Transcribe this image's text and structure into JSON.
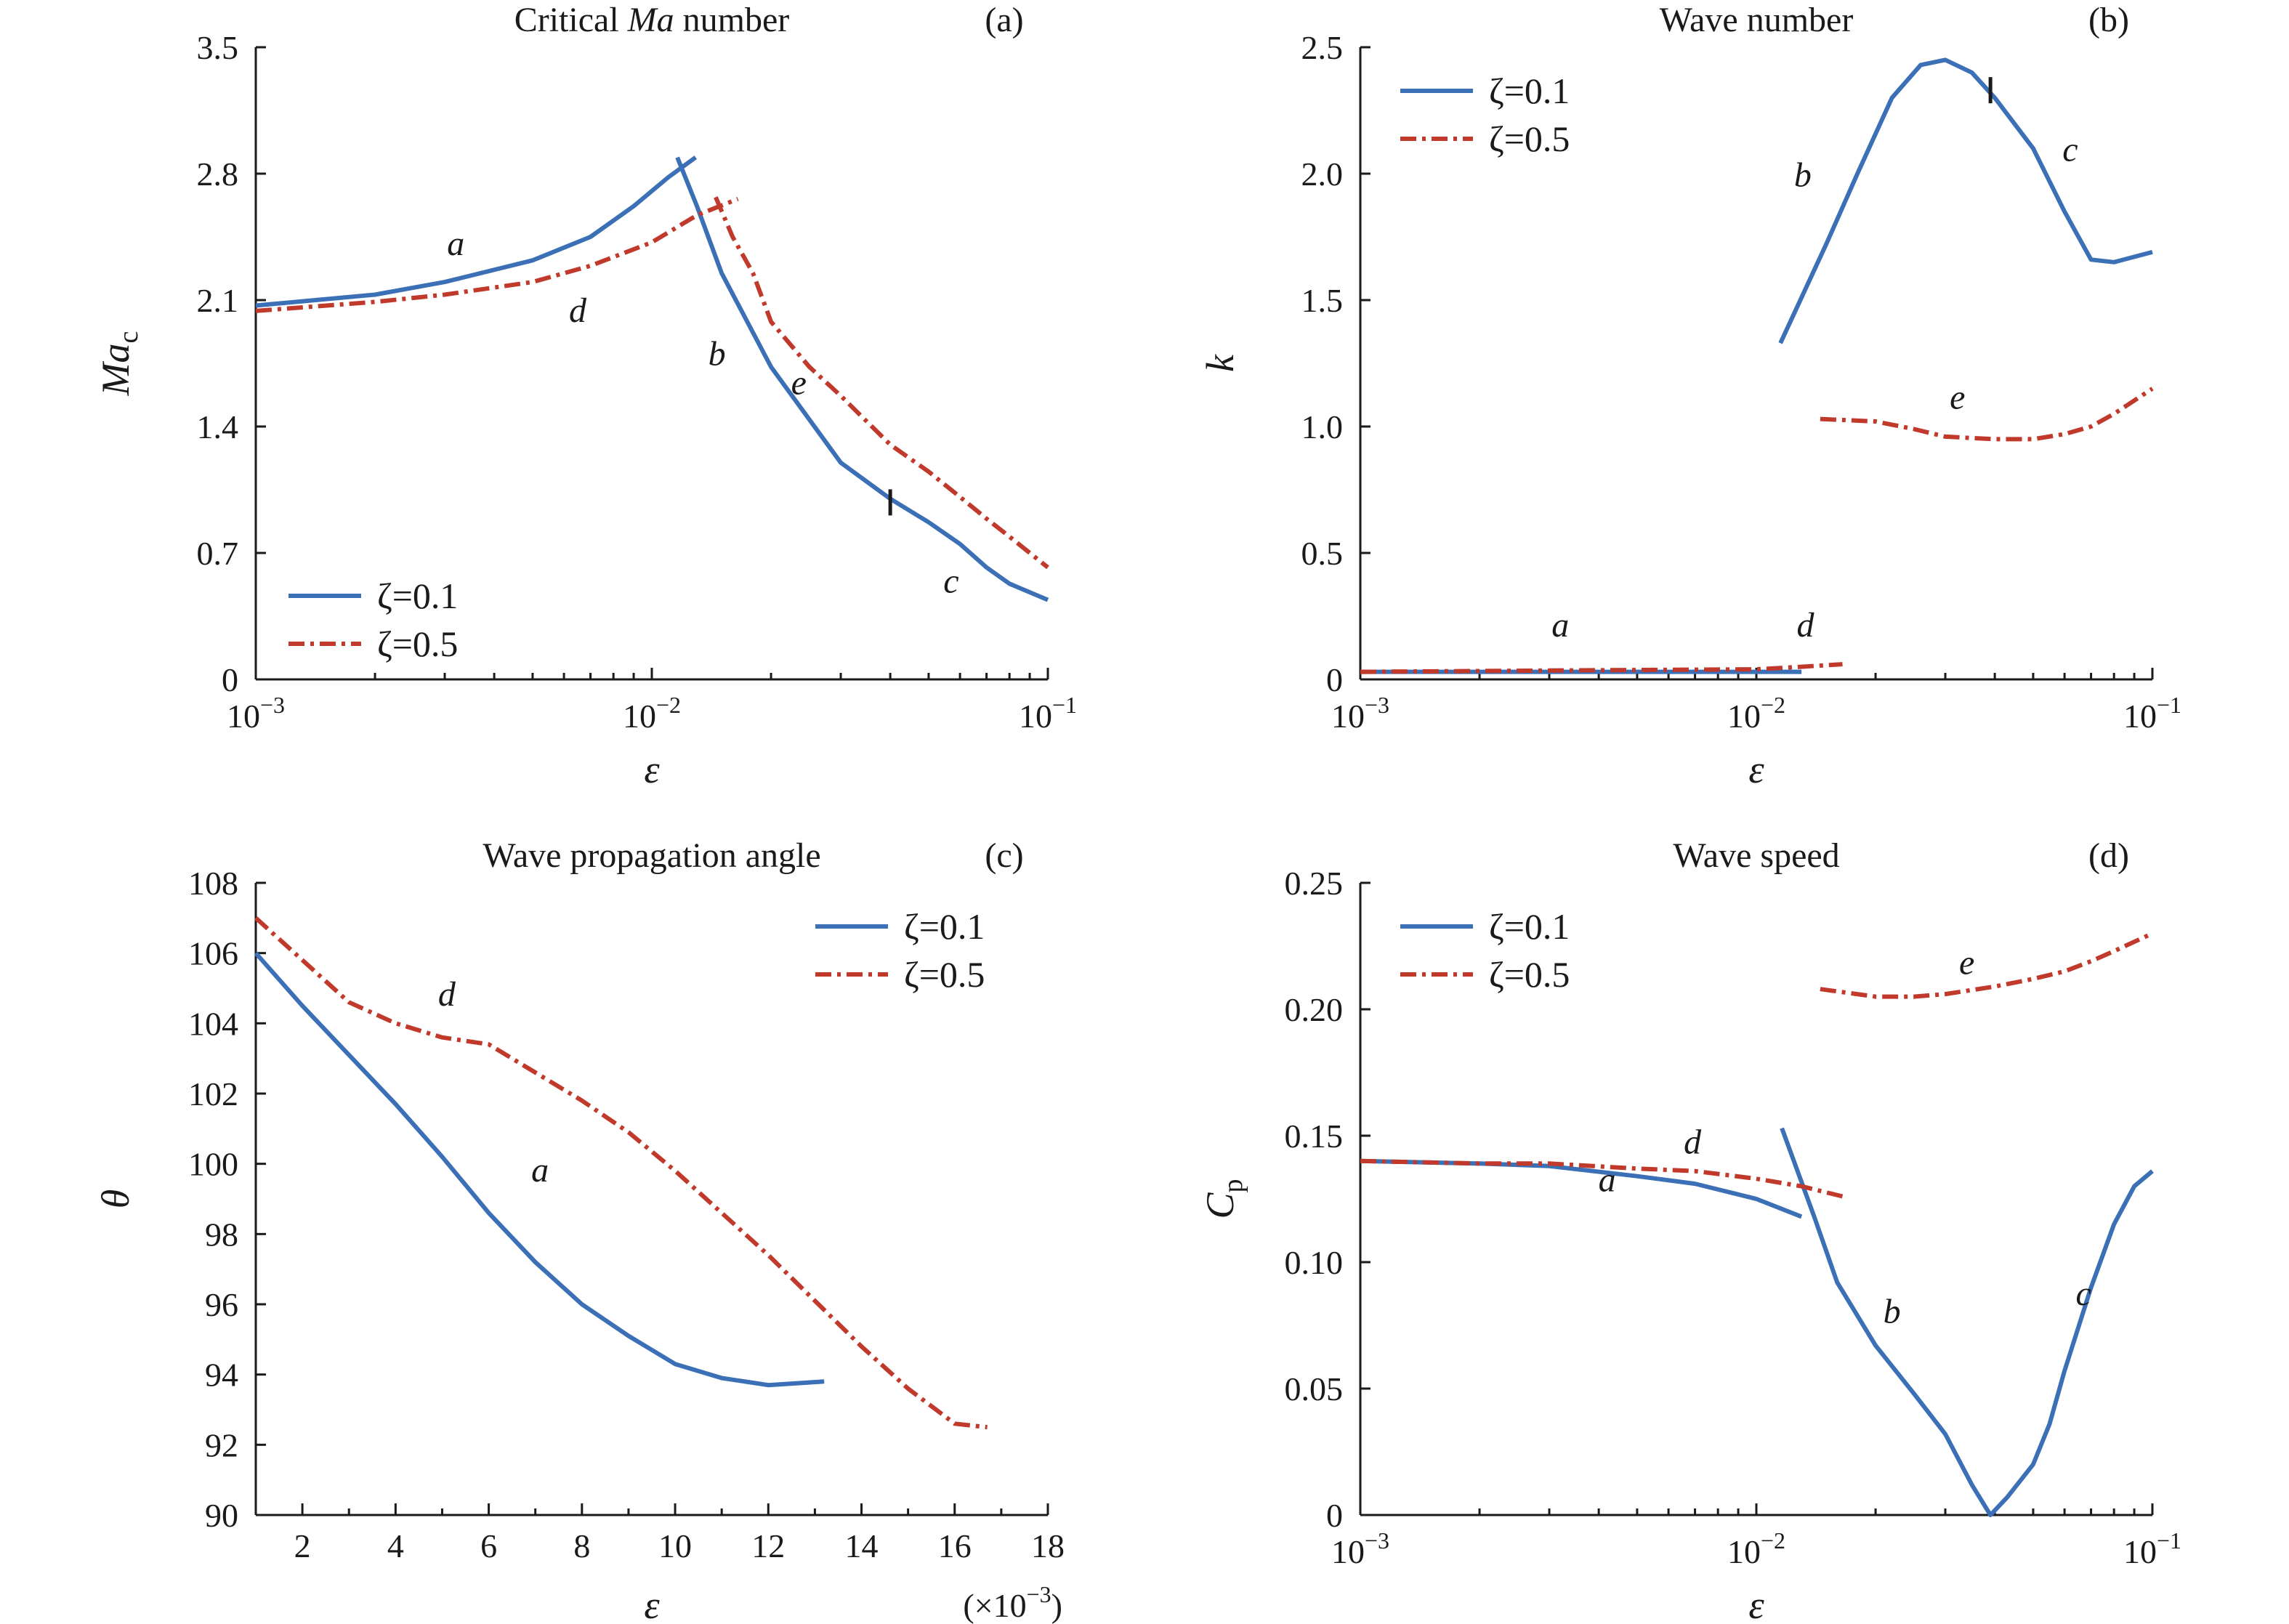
{
  "colors": {
    "series_1": "#3b6fb6",
    "series_2": "#c0392b",
    "axis": "#1a1a1a"
  },
  "chart_data": [
    {
      "id": "a",
      "type": "line",
      "title": "Critical Ma number",
      "panel_tag": "(a)",
      "xlabel": "ε",
      "ylabel": "Ma",
      "ylabel_sub": "c",
      "xscale": "log",
      "xlim": [
        0.001,
        0.1
      ],
      "ylim": [
        0,
        3.5
      ],
      "xticks": [
        0.001,
        0.01,
        0.1
      ],
      "xtick_labels": [
        "10^-3",
        "10^-2",
        "10^-1"
      ],
      "yticks": [
        0,
        0.7,
        1.4,
        2.1,
        2.8,
        3.5
      ],
      "ytick_labels": [
        "0",
        "0.7",
        "1.4",
        "2.1",
        "2.8",
        "3.5"
      ],
      "grid": false,
      "legend_position": "bottom-left",
      "series": [
        {
          "name": "ζ=0.1",
          "style": "solid",
          "color": "#3b6fb6",
          "segments": [
            [
              [
                0.001,
                2.07
              ],
              [
                0.002,
                2.13
              ],
              [
                0.003,
                2.2
              ],
              [
                0.005,
                2.32
              ],
              [
                0.007,
                2.45
              ],
              [
                0.009,
                2.62
              ],
              [
                0.011,
                2.78
              ],
              [
                0.0129,
                2.89
              ]
            ],
            [
              [
                0.0116,
                2.89
              ],
              [
                0.013,
                2.62
              ],
              [
                0.015,
                2.25
              ],
              [
                0.02,
                1.73
              ],
              [
                0.03,
                1.2
              ],
              [
                0.04,
                1.0
              ],
              [
                0.05,
                0.87
              ],
              [
                0.06,
                0.75
              ],
              [
                0.07,
                0.62
              ],
              [
                0.08,
                0.53
              ],
              [
                0.1,
                0.44
              ]
            ]
          ]
        },
        {
          "name": "ζ=0.5",
          "style": "dashdot",
          "color": "#c0392b",
          "segments": [
            [
              [
                0.001,
                2.04
              ],
              [
                0.002,
                2.09
              ],
              [
                0.003,
                2.13
              ],
              [
                0.005,
                2.2
              ],
              [
                0.007,
                2.29
              ],
              [
                0.01,
                2.42
              ],
              [
                0.013,
                2.57
              ],
              [
                0.0165,
                2.66
              ]
            ],
            [
              [
                0.0145,
                2.67
              ],
              [
                0.016,
                2.45
              ],
              [
                0.018,
                2.25
              ],
              [
                0.02,
                1.98
              ],
              [
                0.025,
                1.73
              ],
              [
                0.03,
                1.57
              ],
              [
                0.04,
                1.3
              ],
              [
                0.05,
                1.15
              ],
              [
                0.06,
                1.01
              ],
              [
                0.07,
                0.89
              ],
              [
                0.08,
                0.79
              ],
              [
                0.1,
                0.62
              ]
            ]
          ]
        }
      ],
      "markers": [
        {
          "x": 0.04,
          "y": 0.98
        }
      ],
      "annotations": [
        {
          "text": "a",
          "x": 0.0032,
          "y": 2.35
        },
        {
          "text": "d",
          "x": 0.0065,
          "y": 1.98
        },
        {
          "text": "b",
          "x": 0.0146,
          "y": 1.74
        },
        {
          "text": "e",
          "x": 0.0235,
          "y": 1.58
        },
        {
          "text": "c",
          "x": 0.057,
          "y": 0.48
        }
      ]
    },
    {
      "id": "b",
      "type": "line",
      "title": "Wave number",
      "panel_tag": "(b)",
      "xlabel": "ε",
      "ylabel": "k",
      "ylabel_sub": "",
      "xscale": "log",
      "xlim": [
        0.001,
        0.1
      ],
      "ylim": [
        0,
        2.5
      ],
      "xticks": [
        0.001,
        0.01,
        0.1
      ],
      "xtick_labels": [
        "10^-3",
        "10^-2",
        "10^-1"
      ],
      "yticks": [
        0,
        0.5,
        1.0,
        1.5,
        2.0,
        2.5
      ],
      "ytick_labels": [
        "0",
        "0.5",
        "1.0",
        "1.5",
        "2.0",
        "2.5"
      ],
      "grid": false,
      "legend_position": "top-left",
      "series": [
        {
          "name": "ζ=0.1",
          "style": "solid",
          "color": "#3b6fb6",
          "segments": [
            [
              [
                0.001,
                0.03
              ],
              [
                0.003,
                0.03
              ],
              [
                0.006,
                0.03
              ],
              [
                0.01,
                0.03
              ],
              [
                0.013,
                0.03
              ]
            ],
            [
              [
                0.0115,
                1.33
              ],
              [
                0.015,
                1.72
              ],
              [
                0.018,
                2.0
              ],
              [
                0.022,
                2.3
              ],
              [
                0.026,
                2.43
              ],
              [
                0.03,
                2.45
              ],
              [
                0.035,
                2.4
              ],
              [
                0.04,
                2.3
              ],
              [
                0.05,
                2.1
              ],
              [
                0.06,
                1.85
              ],
              [
                0.07,
                1.66
              ],
              [
                0.08,
                1.65
              ],
              [
                0.1,
                1.69
              ]
            ]
          ]
        },
        {
          "name": "ζ=0.5",
          "style": "dashdot",
          "color": "#c0392b",
          "segments": [
            [
              [
                0.001,
                0.03
              ],
              [
                0.003,
                0.035
              ],
              [
                0.006,
                0.038
              ],
              [
                0.01,
                0.04
              ],
              [
                0.013,
                0.05
              ],
              [
                0.0165,
                0.06
              ]
            ],
            [
              [
                0.0145,
                1.03
              ],
              [
                0.02,
                1.02
              ],
              [
                0.025,
                0.99
              ],
              [
                0.03,
                0.96
              ],
              [
                0.04,
                0.95
              ],
              [
                0.05,
                0.95
              ],
              [
                0.06,
                0.97
              ],
              [
                0.07,
                1.0
              ],
              [
                0.08,
                1.05
              ],
              [
                0.1,
                1.15
              ]
            ]
          ]
        }
      ],
      "markers": [
        {
          "x": 0.039,
          "y": 2.33
        }
      ],
      "annotations": [
        {
          "text": "b",
          "x": 0.0131,
          "y": 1.95
        },
        {
          "text": "c",
          "x": 0.062,
          "y": 2.05
        },
        {
          "text": "e",
          "x": 0.0322,
          "y": 1.07
        },
        {
          "text": "a",
          "x": 0.0032,
          "y": 0.17
        },
        {
          "text": "d",
          "x": 0.0133,
          "y": 0.17
        }
      ]
    },
    {
      "id": "c",
      "type": "line",
      "title": "Wave propagation angle",
      "panel_tag": "(c)",
      "xlabel": "ε",
      "ylabel": "θ",
      "ylabel_sub": "",
      "xscale": "linear",
      "x_multiplier": "(×10^-3)",
      "xlim": [
        1,
        18
      ],
      "ylim": [
        90,
        108
      ],
      "xticks": [
        2,
        4,
        6,
        8,
        10,
        12,
        14,
        16,
        18
      ],
      "xtick_labels": [
        "2",
        "4",
        "6",
        "8",
        "10",
        "12",
        "14",
        "16",
        "18"
      ],
      "yticks": [
        90,
        92,
        94,
        96,
        98,
        100,
        102,
        104,
        106,
        108
      ],
      "ytick_labels": [
        "90",
        "92",
        "94",
        "96",
        "98",
        "100",
        "102",
        "104",
        "106",
        "108"
      ],
      "grid": false,
      "legend_position": "top-right",
      "series": [
        {
          "name": "ζ=0.1",
          "style": "solid",
          "color": "#3b6fb6",
          "segments": [
            [
              [
                1,
                106.0
              ],
              [
                2,
                104.5
              ],
              [
                3,
                103.1
              ],
              [
                4,
                101.7
              ],
              [
                5,
                100.2
              ],
              [
                6,
                98.6
              ],
              [
                7,
                97.2
              ],
              [
                8,
                96.0
              ],
              [
                9,
                95.1
              ],
              [
                10,
                94.3
              ],
              [
                11,
                93.9
              ],
              [
                12,
                93.7
              ],
              [
                13.2,
                93.8
              ]
            ]
          ]
        },
        {
          "name": "ζ=0.5",
          "style": "dashdot",
          "color": "#c0392b",
          "segments": [
            [
              [
                1,
                107.0
              ],
              [
                2,
                105.8
              ],
              [
                3,
                104.6
              ],
              [
                4,
                104.0
              ],
              [
                5,
                103.6
              ],
              [
                6,
                103.4
              ],
              [
                7,
                102.6
              ],
              [
                8,
                101.8
              ],
              [
                9,
                100.9
              ],
              [
                10,
                99.8
              ],
              [
                11,
                98.6
              ],
              [
                12,
                97.4
              ],
              [
                13,
                96.1
              ],
              [
                14,
                94.8
              ],
              [
                15,
                93.6
              ],
              [
                16,
                92.6
              ],
              [
                16.7,
                92.5
              ]
            ]
          ]
        }
      ],
      "markers": [],
      "annotations": [
        {
          "text": "d",
          "x": 5.1,
          "y": 104.5
        },
        {
          "text": "a",
          "x": 7.1,
          "y": 99.5
        }
      ]
    },
    {
      "id": "d",
      "type": "line",
      "title": "Wave speed",
      "panel_tag": "(d)",
      "xlabel": "ε",
      "ylabel": "C",
      "ylabel_sub": "p",
      "xscale": "log",
      "xlim": [
        0.001,
        0.1
      ],
      "ylim": [
        0,
        0.25
      ],
      "xticks": [
        0.001,
        0.01,
        0.1
      ],
      "xtick_labels": [
        "10^-3",
        "10^-2",
        "10^-1"
      ],
      "yticks": [
        0,
        0.05,
        0.1,
        0.15,
        0.2,
        0.25
      ],
      "ytick_labels": [
        "0",
        "0.05",
        "0.10",
        "0.15",
        "0.20",
        "0.25"
      ],
      "grid": false,
      "legend_position": "top-left",
      "series": [
        {
          "name": "ζ=0.1",
          "style": "solid",
          "color": "#3b6fb6",
          "segments": [
            [
              [
                0.001,
                0.14
              ],
              [
                0.002,
                0.139
              ],
              [
                0.003,
                0.138
              ],
              [
                0.005,
                0.134
              ],
              [
                0.007,
                0.131
              ],
              [
                0.01,
                0.125
              ],
              [
                0.013,
                0.118
              ]
            ],
            [
              [
                0.0116,
                0.153
              ],
              [
                0.014,
                0.118
              ],
              [
                0.016,
                0.092
              ],
              [
                0.02,
                0.067
              ],
              [
                0.025,
                0.048
              ],
              [
                0.03,
                0.032
              ],
              [
                0.035,
                0.012
              ],
              [
                0.039,
                0.0
              ],
              [
                0.043,
                0.007
              ],
              [
                0.05,
                0.02
              ],
              [
                0.055,
                0.036
              ],
              [
                0.06,
                0.057
              ],
              [
                0.07,
                0.09
              ],
              [
                0.08,
                0.115
              ],
              [
                0.09,
                0.13
              ],
              [
                0.1,
                0.136
              ]
            ]
          ]
        },
        {
          "name": "ζ=0.5",
          "style": "dashdot",
          "color": "#c0392b",
          "segments": [
            [
              [
                0.001,
                0.14
              ],
              [
                0.002,
                0.139
              ],
              [
                0.003,
                0.139
              ],
              [
                0.005,
                0.137
              ],
              [
                0.007,
                0.136
              ],
              [
                0.01,
                0.133
              ],
              [
                0.013,
                0.13
              ],
              [
                0.0165,
                0.126
              ]
            ],
            [
              [
                0.0145,
                0.208
              ],
              [
                0.02,
                0.205
              ],
              [
                0.025,
                0.205
              ],
              [
                0.03,
                0.206
              ],
              [
                0.04,
                0.209
              ],
              [
                0.05,
                0.212
              ],
              [
                0.06,
                0.215
              ],
              [
                0.07,
                0.219
              ],
              [
                0.08,
                0.223
              ],
              [
                0.1,
                0.23
              ]
            ]
          ]
        }
      ],
      "markers": [],
      "annotations": [
        {
          "text": "e",
          "x": 0.034,
          "y": 0.214
        },
        {
          "text": "d",
          "x": 0.0069,
          "y": 0.143
        },
        {
          "text": "a",
          "x": 0.0042,
          "y": 0.128
        },
        {
          "text": "b",
          "x": 0.022,
          "y": 0.076
        },
        {
          "text": "c",
          "x": 0.067,
          "y": 0.083
        }
      ]
    }
  ]
}
